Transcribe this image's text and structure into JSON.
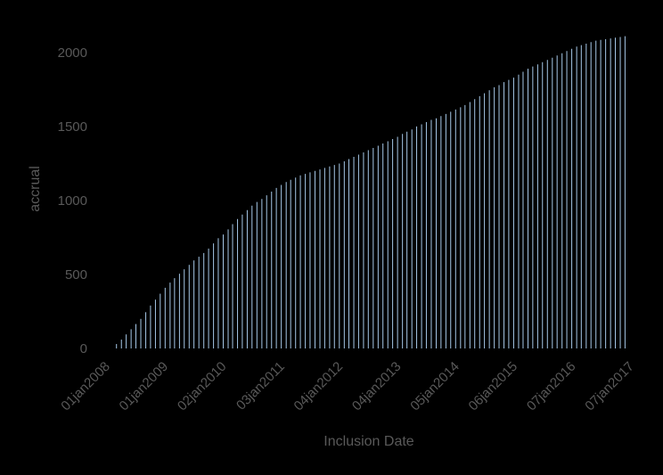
{
  "chart_data": {
    "type": "bar",
    "xlabel": "Inclusion Date",
    "ylabel": "accrual",
    "x_tick_labels": [
      "01jan2008",
      "01jan2009",
      "02jan2010",
      "03jan2011",
      "04jan2012",
      "04jan2013",
      "05jan2014",
      "06jan2015",
      "07jan2016",
      "07jan2017"
    ],
    "x_ticks": [
      "2008-01-01",
      "2009-01-01",
      "2010-01-02",
      "2011-01-03",
      "2012-01-04",
      "2013-01-04",
      "2014-01-05",
      "2015-01-06",
      "2016-01-07",
      "2017-01-07"
    ],
    "y_ticks": [
      0,
      500,
      1000,
      1500,
      2000
    ],
    "xlim": [
      "2008-01-01",
      "2017-01-07"
    ],
    "ylim": [
      0,
      2150
    ],
    "grid": false,
    "bar_color": "#a6c8e8",
    "series": [
      {
        "x": [
          "2008-03-01",
          "2008-04-01",
          "2008-05-01",
          "2008-06-01",
          "2008-07-01",
          "2008-08-01",
          "2008-09-01",
          "2008-10-01",
          "2008-11-01",
          "2008-12-01",
          "2009-01-01",
          "2009-02-01",
          "2009-03-01",
          "2009-04-01",
          "2009-05-01",
          "2009-06-01",
          "2009-07-01",
          "2009-08-01",
          "2009-09-01",
          "2009-10-01",
          "2009-11-01",
          "2009-12-01",
          "2010-01-01",
          "2010-02-01",
          "2010-03-01",
          "2010-04-01",
          "2010-05-01",
          "2010-06-01",
          "2010-07-01",
          "2010-08-01",
          "2010-09-01",
          "2010-10-01",
          "2010-11-01",
          "2010-12-01",
          "2011-01-01",
          "2011-02-01",
          "2011-03-01",
          "2011-04-01",
          "2011-05-01",
          "2011-06-01",
          "2011-07-01",
          "2011-08-01",
          "2011-09-01",
          "2011-10-01",
          "2011-11-01",
          "2011-12-01",
          "2012-01-01",
          "2012-02-01",
          "2012-03-01",
          "2012-04-01",
          "2012-05-01",
          "2012-06-01",
          "2012-07-01",
          "2012-08-01",
          "2012-09-01",
          "2012-10-01",
          "2012-11-01",
          "2012-12-01",
          "2013-01-01",
          "2013-02-01",
          "2013-03-01",
          "2013-04-01",
          "2013-05-01",
          "2013-06-01",
          "2013-07-01",
          "2013-08-01",
          "2013-09-01",
          "2013-10-01",
          "2013-11-01",
          "2013-12-01",
          "2014-01-01",
          "2014-02-01",
          "2014-03-01",
          "2014-04-01",
          "2014-05-01",
          "2014-06-01",
          "2014-07-01",
          "2014-08-01",
          "2014-09-01",
          "2014-10-01",
          "2014-11-01",
          "2014-12-01",
          "2015-01-01",
          "2015-02-01",
          "2015-03-01",
          "2015-04-01",
          "2015-05-01",
          "2015-06-01",
          "2015-07-01",
          "2015-08-01",
          "2015-09-01",
          "2015-10-01",
          "2015-11-01",
          "2015-12-01",
          "2016-01-01",
          "2016-02-01",
          "2016-03-01",
          "2016-04-01",
          "2016-05-01",
          "2016-06-01",
          "2016-07-01",
          "2016-08-01",
          "2016-09-01",
          "2016-10-01",
          "2016-11-01",
          "2016-12-01"
        ],
        "values": [
          30,
          60,
          95,
          130,
          165,
          200,
          245,
          290,
          330,
          370,
          410,
          445,
          475,
          505,
          535,
          565,
          595,
          620,
          645,
          675,
          710,
          745,
          770,
          805,
          840,
          875,
          905,
          935,
          965,
          990,
          1010,
          1035,
          1060,
          1085,
          1105,
          1125,
          1140,
          1155,
          1170,
          1180,
          1190,
          1200,
          1210,
          1220,
          1230,
          1240,
          1250,
          1265,
          1280,
          1295,
          1310,
          1325,
          1340,
          1355,
          1370,
          1385,
          1400,
          1415,
          1430,
          1450,
          1465,
          1480,
          1500,
          1515,
          1530,
          1545,
          1555,
          1570,
          1585,
          1600,
          1615,
          1630,
          1645,
          1665,
          1685,
          1705,
          1725,
          1745,
          1765,
          1780,
          1800,
          1815,
          1830,
          1850,
          1870,
          1890,
          1905,
          1920,
          1935,
          1950,
          1965,
          1980,
          1995,
          2010,
          2025,
          2040,
          2050,
          2060,
          2070,
          2080,
          2085,
          2090,
          2095,
          2100,
          2105,
          2110
        ]
      }
    ]
  }
}
